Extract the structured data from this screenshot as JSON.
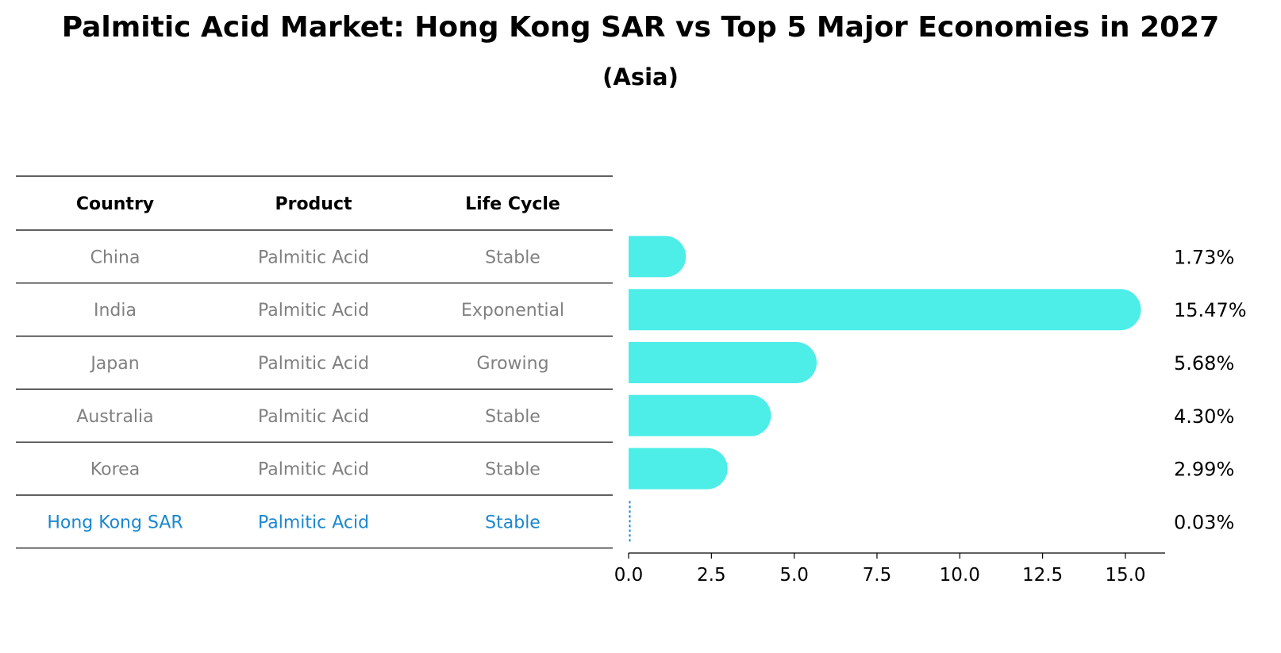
{
  "title": "Palmitic Acid Market: Hong Kong SAR vs Top 5 Major Economies in 2027",
  "subtitle": "(Asia)",
  "table": {
    "headers": [
      "Country",
      "Product",
      "Life Cycle"
    ],
    "rows": [
      {
        "country": "China",
        "product": "Palmitic Acid",
        "life_cycle": "Stable",
        "highlight": false
      },
      {
        "country": "India",
        "product": "Palmitic Acid",
        "life_cycle": "Exponential",
        "highlight": false
      },
      {
        "country": "Japan",
        "product": "Palmitic Acid",
        "life_cycle": "Growing",
        "highlight": false
      },
      {
        "country": "Australia",
        "product": "Palmitic Acid",
        "life_cycle": "Stable",
        "highlight": false
      },
      {
        "country": "Korea",
        "product": "Palmitic Acid",
        "life_cycle": "Stable",
        "highlight": false
      },
      {
        "country": "Hong Kong SAR",
        "product": "Palmitic Acid",
        "life_cycle": "Stable",
        "highlight": true
      }
    ]
  },
  "chart_data": {
    "type": "bar",
    "orientation": "horizontal",
    "categories": [
      "China",
      "India",
      "Japan",
      "Australia",
      "Korea",
      "Hong Kong SAR"
    ],
    "values": [
      1.73,
      15.47,
      5.68,
      4.3,
      2.99,
      0.03
    ],
    "value_labels": [
      "1.73%",
      "15.47%",
      "5.68%",
      "4.30%",
      "2.99%",
      "0.03%"
    ],
    "xlim": [
      0,
      16.2
    ],
    "xticks": [
      0.0,
      2.5,
      5.0,
      7.5,
      10.0,
      12.5,
      15.0
    ],
    "xtick_labels": [
      "0.0",
      "2.5",
      "5.0",
      "7.5",
      "10.0",
      "12.5",
      "15.0"
    ],
    "grid": false,
    "legend": "none"
  },
  "colors": {
    "bar": "#4dede8",
    "highlight": "#1a87d0",
    "muted_text": "#808080",
    "axis": "#000000"
  }
}
